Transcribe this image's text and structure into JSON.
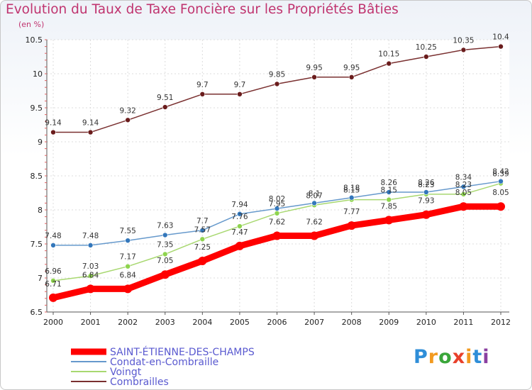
{
  "title": "Evolution du Taux de Taxe Foncière sur les Propriétés Bâties",
  "subtitle": "(en %)",
  "logo": {
    "letters": [
      "P",
      "r",
      "o",
      "x",
      "i",
      "t",
      "i"
    ],
    "colors": [
      "#2f8ed8",
      "#f29a1f",
      "#3aa63a",
      "#e8402a",
      "#f29a1f",
      "#2f8ed8",
      "#8a3fa0"
    ]
  },
  "chart_data": {
    "type": "line",
    "title": "Evolution du Taux de Taxe Foncière sur les Propriétés Bâties",
    "ylabel": "(en %)",
    "ylim": [
      6.5,
      10.5
    ],
    "yticks": [
      6.5,
      7,
      7.5,
      8,
      8.5,
      9,
      9.5,
      10,
      10.5
    ],
    "x": [
      "2000",
      "2001",
      "2002",
      "2003",
      "2004",
      "2005",
      "2006",
      "2007",
      "2008",
      "2009",
      "2010",
      "2011",
      "2012"
    ],
    "legend_position": "bottom-left",
    "series": [
      {
        "name": "SAINT-ÉTIENNE-DES-CHAMPS",
        "color": "#ff0000",
        "marker": "#ff0000",
        "values": [
          6.71,
          6.84,
          6.84,
          7.05,
          7.25,
          7.47,
          7.62,
          7.62,
          7.77,
          7.85,
          7.93,
          8.05,
          8.05
        ]
      },
      {
        "name": "Condat-en-Combraille",
        "color": "#6699cc",
        "marker": "#3377bb",
        "values": [
          7.48,
          7.48,
          7.55,
          7.63,
          7.7,
          7.94,
          8.02,
          8.1,
          8.18,
          8.26,
          8.26,
          8.34,
          8.42
        ]
      },
      {
        "name": "Voingt",
        "color": "#a8d870",
        "marker": "#8ed44e",
        "values": [
          6.96,
          7.03,
          7.17,
          7.35,
          7.57,
          7.76,
          7.95,
          8.07,
          8.15,
          8.15,
          8.23,
          8.23,
          8.39
        ]
      },
      {
        "name": "Combrailles",
        "color": "#7a3030",
        "marker": "#6a1c1c",
        "values": [
          9.14,
          9.14,
          9.32,
          9.51,
          9.7,
          9.7,
          9.85,
          9.95,
          9.95,
          10.15,
          10.25,
          10.35,
          10.4
        ]
      }
    ]
  }
}
